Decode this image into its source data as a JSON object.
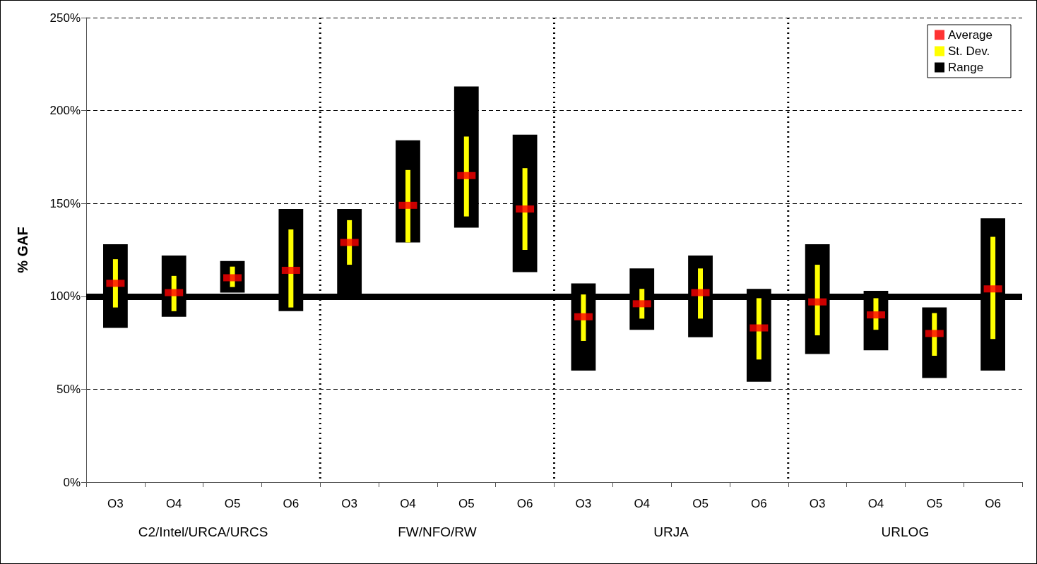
{
  "chart_data": {
    "type": "bar",
    "ylabel": "% GAF",
    "categories": [
      "O3",
      "O4",
      "O5",
      "O6",
      "O3",
      "O4",
      "O5",
      "O6",
      "O3",
      "O4",
      "O5",
      "O6",
      "O3",
      "O4",
      "O5",
      "O6"
    ],
    "annotations": [
      "C2/Intel/URCA/URCS",
      "FW/NFO/RW",
      "URJA",
      "URLOG"
    ],
    "series": [
      {
        "name": "Average",
        "type": "scatter",
        "marker": "square",
        "color": "#ff0000",
        "values": [
          107,
          102,
          110,
          114,
          129,
          149,
          165,
          147,
          89,
          96,
          102,
          83,
          97,
          90,
          80,
          104
        ]
      },
      {
        "name": "St. Dev.",
        "color": "#ffff00",
        "base": [
          94,
          92,
          105,
          94,
          117,
          129,
          143,
          125,
          76,
          88,
          88,
          66,
          79,
          82,
          68,
          77
        ],
        "values": [
          26,
          19,
          11,
          42,
          24,
          39,
          43,
          44,
          25,
          16,
          27,
          33,
          38,
          17,
          23,
          55
        ]
      },
      {
        "name": "Range",
        "color": "#000000",
        "base": [
          83,
          89,
          102,
          92,
          100,
          129,
          137,
          113,
          60,
          82,
          78,
          54,
          69,
          71,
          56,
          60
        ],
        "values": [
          45,
          33,
          17,
          55,
          47,
          55,
          76,
          74,
          47,
          33,
          44,
          50,
          59,
          32,
          38,
          82
        ]
      }
    ],
    "ref_lines": [
      {
        "axis": "y",
        "value": 100,
        "color": "#000000"
      }
    ],
    "ylim": [
      0,
      250
    ],
    "yticks": [
      {
        "value": 0,
        "label": "0%"
      },
      {
        "value": 50,
        "label": "50%"
      },
      {
        "value": 100,
        "label": "100%"
      },
      {
        "value": 150,
        "label": "150%"
      },
      {
        "value": 200,
        "label": "200%"
      },
      {
        "value": 250,
        "label": "250%"
      }
    ],
    "grid": "y",
    "legend": "top right"
  }
}
